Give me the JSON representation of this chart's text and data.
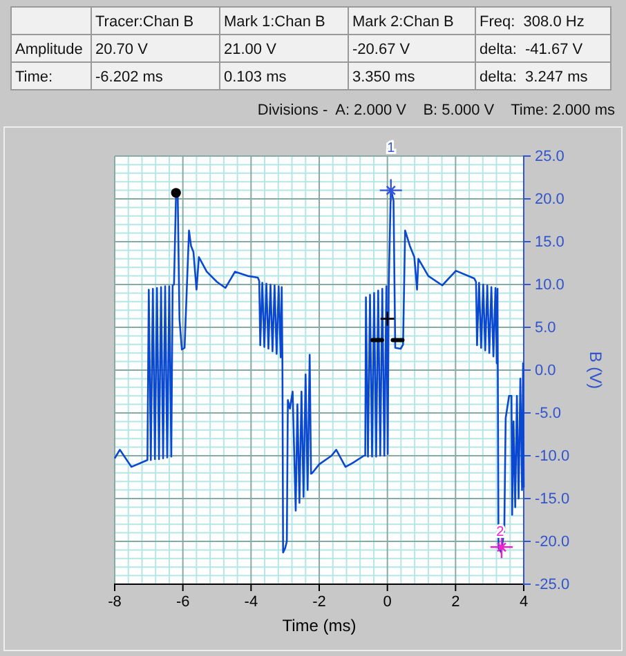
{
  "chart_data": {
    "type": "line",
    "xlabel": "Time (ms)",
    "ylabel": "B (V)",
    "xlim": [
      -8,
      4
    ],
    "xticks": [
      -8,
      {
        "value": -7.6,
        "label": null
      },
      {
        "value": -7.2,
        "label": null
      },
      {
        "value": -6.8,
        "label": null
      },
      {
        "value": -6.4,
        "label": null
      },
      -6,
      {
        "value": -5.6,
        "label": null
      },
      {
        "value": -5.2,
        "label": null
      },
      {
        "value": -4.8,
        "label": null
      },
      {
        "value": -4.4,
        "label": null
      },
      -4,
      {
        "value": -3.6,
        "label": null
      },
      {
        "value": -3.2,
        "label": null
      },
      {
        "value": -2.8,
        "label": null
      },
      {
        "value": -2.4,
        "label": null
      },
      -2,
      {
        "value": -1.6,
        "label": null
      },
      {
        "value": -1.2,
        "label": null
      },
      {
        "value": -0.8,
        "label": null
      },
      {
        "value": -0.4,
        "label": null
      },
      0,
      {
        "value": 0.4,
        "label": null
      },
      {
        "value": 0.8,
        "label": null
      },
      {
        "value": 1.2,
        "label": null
      },
      {
        "value": 1.6,
        "label": null
      },
      2,
      {
        "value": 2.4,
        "label": null
      },
      {
        "value": 2.8,
        "label": null
      },
      {
        "value": 3.2,
        "label": null
      },
      {
        "value": 3.6,
        "label": null
      },
      4
    ],
    "ylim": [
      -25,
      25
    ],
    "yticks": [
      {
        "value": 25,
        "label": "25.0"
      },
      {
        "value": 24,
        "label": null
      },
      {
        "value": 23,
        "label": null
      },
      {
        "value": 22,
        "label": null
      },
      {
        "value": 21,
        "label": null
      },
      {
        "value": 20,
        "label": "20.0"
      },
      {
        "value": 19,
        "label": null
      },
      {
        "value": 18,
        "label": null
      },
      {
        "value": 17,
        "label": null
      },
      {
        "value": 16,
        "label": null
      },
      {
        "value": 15,
        "label": "15.0"
      },
      {
        "value": 14,
        "label": null
      },
      {
        "value": 13,
        "label": null
      },
      {
        "value": 12,
        "label": null
      },
      {
        "value": 11,
        "label": null
      },
      {
        "value": 10,
        "label": "10.0"
      },
      {
        "value": 9,
        "label": null
      },
      {
        "value": 8,
        "label": null
      },
      {
        "value": 7,
        "label": null
      },
      {
        "value": 6,
        "label": null
      },
      {
        "value": 5,
        "label": "5.0"
      },
      {
        "value": 4,
        "label": null
      },
      {
        "value": 3,
        "label": null
      },
      {
        "value": 2,
        "label": null
      },
      {
        "value": 1,
        "label": null
      },
      {
        "value": 0,
        "label": "0.0"
      },
      {
        "value": -1,
        "label": null
      },
      {
        "value": -2,
        "label": null
      },
      {
        "value": -3,
        "label": null
      },
      {
        "value": -4,
        "label": null
      },
      {
        "value": -5,
        "label": "-5.0"
      },
      {
        "value": -6,
        "label": null
      },
      {
        "value": -7,
        "label": null
      },
      {
        "value": -8,
        "label": null
      },
      {
        "value": -9,
        "label": null
      },
      {
        "value": -10,
        "label": "-10.0"
      },
      {
        "value": -11,
        "label": null
      },
      {
        "value": -12,
        "label": null
      },
      {
        "value": -13,
        "label": null
      },
      {
        "value": -14,
        "label": null
      },
      {
        "value": -15,
        "label": "-15.0"
      },
      {
        "value": -16,
        "label": null
      },
      {
        "value": -17,
        "label": null
      },
      {
        "value": -18,
        "label": null
      },
      {
        "value": -19,
        "label": null
      },
      {
        "value": -20,
        "label": "-20.0"
      },
      {
        "value": -21,
        "label": null
      },
      {
        "value": -22,
        "label": null
      },
      {
        "value": -23,
        "label": null
      },
      {
        "value": -24,
        "label": null
      },
      {
        "value": -25,
        "label": "-25.0"
      }
    ],
    "grid": true,
    "series": [
      {
        "type": "line",
        "color": "#0a48d0",
        "marker": "none",
        "line_style": "solid",
        "x": [
          -8,
          -7.85,
          -7.51,
          -7.04,
          -7,
          -6.94,
          -6.88,
          -6.82,
          -6.76,
          -6.7,
          -6.64,
          -6.58,
          -6.52,
          -6.46,
          -6.4,
          -6.34,
          -6.3,
          -6.26,
          -6.2,
          -6.15,
          -6.1,
          -6.03,
          -5.95,
          -5.82,
          -5.76,
          -5.69,
          -5.6,
          -5.53,
          -5.3,
          -5,
          -4.75,
          -4.47,
          -4.1,
          -3.8,
          -3.76,
          -3.73,
          -3.67,
          -3.61,
          -3.55,
          -3.49,
          -3.43,
          -3.37,
          -3.31,
          -3.25,
          -3.19,
          -3.13,
          -3.1,
          -3.08,
          -3.06,
          -3,
          -2.95,
          -2.92,
          -2.86,
          -2.78,
          -2.69,
          -2.64,
          -2.58,
          -2.52,
          -2.46,
          -2.4,
          -2.34,
          -2.28,
          -2.24,
          -2.2,
          -2,
          -1.64,
          -1.5,
          -1.23,
          -1,
          -0.69,
          -0.65,
          -0.63,
          -0.57,
          -0.51,
          -0.45,
          -0.39,
          -0.33,
          -0.27,
          -0.21,
          -0.15,
          -0.09,
          -0.03,
          0.01,
          0.04,
          0.1,
          0.14,
          0.18,
          0.23,
          0.39,
          0.46,
          0.52,
          0.66,
          0.79,
          0.87,
          0.91,
          1.2,
          1.61,
          2.01,
          2.55,
          2.6,
          2.63,
          2.69,
          2.75,
          2.81,
          2.87,
          2.93,
          2.99,
          3.05,
          3.11,
          3.17,
          3.21,
          3.23,
          3.26,
          3.34,
          3.43,
          3.47,
          3.57,
          3.64,
          3.66,
          3.7,
          3.75,
          3.8,
          3.85,
          3.9,
          3.95,
          3.98,
          4
        ],
        "values": [
          -10.3,
          -9.3,
          -11.3,
          -10.5,
          9.4,
          -10.5,
          9.5,
          -10.4,
          9.6,
          -10.4,
          9.7,
          -10.3,
          9.8,
          -10.2,
          9.8,
          -10.1,
          9.9,
          10,
          20.7,
          20.2,
          6,
          2.4,
          2.6,
          16.3,
          14.5,
          13.8,
          9.4,
          13.2,
          11.5,
          10.3,
          9.6,
          11.5,
          11,
          10.8,
          10.4,
          2.9,
          10.2,
          2.7,
          10.1,
          2.5,
          10,
          2.2,
          9.9,
          1.9,
          9.8,
          1.5,
          9.7,
          1.3,
          -21.3,
          -20.8,
          -20,
          -3.5,
          -4.5,
          -2.5,
          -16.4,
          -4,
          -15.5,
          -2.5,
          -14.8,
          -0.5,
          -14,
          1.8,
          -12.1,
          -12,
          -11,
          -10,
          -9.3,
          -11.3,
          -10.8,
          -10,
          -10,
          8.5,
          -10.1,
          8.8,
          -10.1,
          9,
          -10.1,
          9.3,
          -10,
          9.5,
          -10,
          9.8,
          -9.8,
          9.9,
          21,
          20.5,
          19.8,
          2.6,
          2.5,
          3,
          16.3,
          14.5,
          13.2,
          9.4,
          13,
          11,
          9.9,
          11.6,
          10.7,
          10.3,
          2.9,
          10.2,
          2.6,
          10,
          2.3,
          9.9,
          2,
          9.7,
          1.6,
          9.6,
          0.8,
          9.5,
          -20.8,
          -21.3,
          -18.6,
          -5.6,
          -3,
          -3,
          -16.9,
          -6,
          -16,
          -3,
          -15,
          -1,
          -14,
          0.8,
          -13.7
        ]
      },
      {
        "type": "scatter",
        "color": "#000000",
        "marker": "circle",
        "x": [
          -6.202
        ],
        "values": [
          20.7
        ]
      },
      {
        "type": "scatter",
        "color": "#3355dd",
        "marker": "cross",
        "x": [
          0.103
        ],
        "values": [
          21
        ]
      },
      {
        "type": "scatter",
        "color": "#ee22cc",
        "marker": "cross",
        "x": [
          3.35
        ],
        "values": [
          -20.67
        ]
      }
    ],
    "annotations": [
      "Tracer:Chan B",
      "Mark 1:Chan B",
      "Mark 2:Chan B",
      "Freq:  308.0 Hz",
      "Amplitude",
      "20.70 V",
      "21.00 V",
      "-20.67 V",
      "delta:  -41.67 V",
      "Time:",
      "-6.202 ms",
      "0.103 ms",
      "3.350 ms",
      "delta:  3.247 ms",
      "Divisions -  A: 2.000 V    B: 5.000 V    Time: 2.000 ms",
      {
        "text": "1",
        "x": 0.103,
        "y": 21
      },
      {
        "text": "2",
        "x": 3.35,
        "y": -20.67
      }
    ]
  }
}
